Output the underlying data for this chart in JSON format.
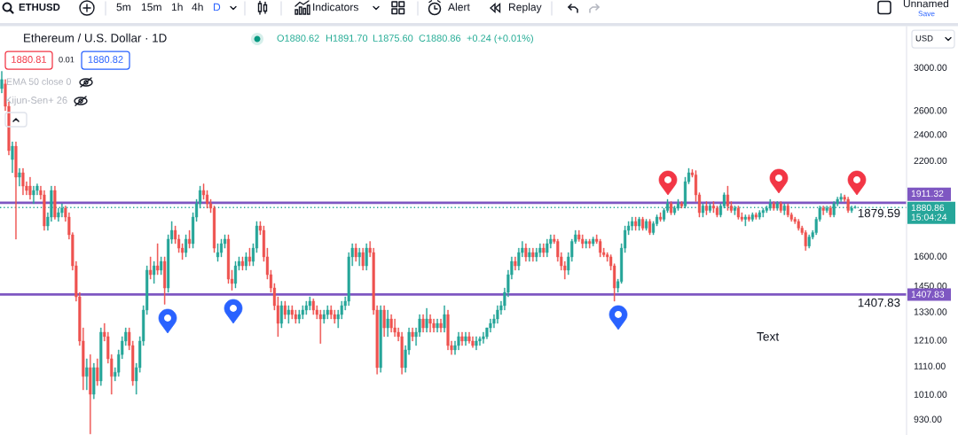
{
  "chart_data": {
    "type": "candlestick",
    "title": "Ethereum / U.S. Dollar · 1D",
    "categories": [
      null,
      null,
      null,
      null,
      null,
      null,
      null,
      null,
      null,
      null,
      null,
      null,
      null,
      null,
      null,
      null,
      null,
      null,
      null,
      null,
      null,
      null,
      null,
      null,
      null,
      null,
      null,
      null,
      null,
      null,
      null,
      null,
      null,
      null,
      null,
      null,
      null,
      null,
      null,
      null,
      null,
      null,
      null,
      null,
      null,
      null,
      null,
      null,
      null,
      null,
      null,
      null,
      null,
      null,
      null,
      null,
      null,
      null,
      null,
      null,
      null,
      null,
      null,
      null,
      null,
      null,
      null,
      null,
      null,
      null,
      null,
      null,
      null,
      null,
      null,
      null,
      null,
      null,
      null,
      null,
      null,
      null,
      null,
      null,
      null,
      null,
      null,
      null,
      null,
      null,
      null,
      null,
      null,
      null,
      null,
      null,
      null,
      null,
      null,
      null,
      null,
      null,
      null,
      null,
      null,
      null,
      null,
      null,
      null,
      null,
      null,
      null,
      null,
      null,
      null,
      null,
      null,
      null,
      null,
      null,
      null,
      null,
      null,
      null,
      null,
      null,
      null,
      null,
      null,
      null,
      null,
      null,
      null,
      null,
      null,
      null,
      null,
      null,
      null,
      null,
      null,
      null,
      null,
      null,
      null,
      null,
      null,
      null,
      null,
      null,
      null,
      null,
      null,
      null,
      null,
      null,
      null,
      null,
      null,
      null,
      null,
      null,
      null,
      null,
      null,
      null,
      null,
      null,
      null,
      null,
      null,
      null,
      null,
      null,
      null,
      null,
      null,
      null,
      null,
      null,
      null,
      null,
      null,
      null,
      null,
      null,
      null,
      null,
      null,
      null,
      null,
      null,
      null,
      null,
      null,
      null,
      null,
      null,
      null,
      null,
      null,
      null,
      null,
      null,
      null,
      null,
      null,
      null,
      null,
      null,
      null,
      null,
      null,
      null,
      null,
      null,
      null,
      null,
      null,
      null,
      null,
      null,
      null,
      null,
      null,
      null,
      null,
      null,
      null,
      null,
      null,
      null,
      null,
      null,
      null,
      null,
      null,
      null,
      null,
      null,
      null,
      null,
      null,
      null,
      null,
      null,
      null,
      null,
      null,
      null,
      null,
      null,
      null,
      null,
      null,
      null
    ],
    "ohlc": [
      [
        2795,
        2960,
        2754,
        2880
      ],
      [
        2838,
        2880,
        2597,
        2635
      ],
      [
        2635,
        2674,
        2240,
        2273
      ],
      [
        2207,
        2341,
        2112,
        2307
      ],
      [
        2307,
        2341,
        1693,
        2081
      ],
      [
        2081,
        2143,
        2020,
        2112
      ],
      [
        2112,
        2143,
        1962,
        2020
      ],
      [
        2020,
        2050,
        1962,
        1991
      ],
      [
        2020,
        2081,
        1933,
        1962
      ],
      [
        1962,
        2020,
        1905,
        1991
      ],
      [
        1991,
        2035,
        1962,
        2020
      ],
      [
        1991,
        2020,
        1933,
        1962
      ],
      [
        1962,
        1991,
        1743,
        1769
      ],
      [
        1769,
        1849,
        1743,
        1822
      ],
      [
        1822,
        2020,
        1796,
        1991
      ],
      [
        1991,
        2020,
        1809,
        1822
      ],
      [
        1822,
        1877,
        1796,
        1849
      ],
      [
        1849,
        1905,
        1822,
        1877
      ],
      [
        1877,
        1891,
        1796,
        1822
      ],
      [
        1822,
        1849,
        1693,
        1718
      ],
      [
        1718,
        1730,
        1527,
        1549
      ],
      [
        1549,
        1572,
        1377,
        1397
      ],
      [
        1397,
        1418,
        1188,
        1206
      ],
      [
        1206,
        1260,
        1025,
        1072
      ],
      [
        1072,
        1137,
        1025,
        1104
      ],
      [
        1104,
        1153,
        885,
        1010
      ],
      [
        1010,
        1120,
        995,
        1104
      ],
      [
        1104,
        1137,
        1040,
        1056
      ],
      [
        1056,
        1260,
        1040,
        1242
      ],
      [
        1242,
        1279,
        1206,
        1224
      ],
      [
        1224,
        1242,
        1120,
        1137
      ],
      [
        1137,
        1153,
        1010,
        1072
      ],
      [
        1072,
        1104,
        1056,
        1087
      ],
      [
        1087,
        1171,
        1072,
        1153
      ],
      [
        1153,
        1224,
        1137,
        1206
      ],
      [
        1206,
        1260,
        1188,
        1242
      ],
      [
        1242,
        1260,
        1171,
        1188
      ],
      [
        1188,
        1206,
        1040,
        1056
      ],
      [
        1056,
        1120,
        1010,
        1104
      ],
      [
        1104,
        1224,
        1087,
        1206
      ],
      [
        1206,
        1357,
        1188,
        1337
      ],
      [
        1337,
        1549,
        1317,
        1527
      ],
      [
        1527,
        1596,
        1482,
        1504
      ],
      [
        1504,
        1572,
        1461,
        1549
      ],
      [
        1549,
        1668,
        1504,
        1527
      ],
      [
        1527,
        1596,
        1504,
        1572
      ],
      [
        1572,
        1596,
        1363,
        1439
      ],
      [
        1439,
        1718,
        1418,
        1693
      ],
      [
        1693,
        1796,
        1668,
        1743
      ],
      [
        1743,
        1769,
        1668,
        1693
      ],
      [
        1693,
        1718,
        1619,
        1643
      ],
      [
        1643,
        1668,
        1582,
        1619
      ],
      [
        1619,
        1718,
        1596,
        1693
      ],
      [
        1693,
        1743,
        1643,
        1668
      ],
      [
        1668,
        1849,
        1643,
        1822
      ],
      [
        1822,
        1933,
        1796,
        1905
      ],
      [
        1905,
        2020,
        1877,
        1991
      ],
      [
        1991,
        2035,
        1933,
        1962
      ],
      [
        1962,
        1991,
        1877,
        1905
      ],
      [
        1905,
        1933,
        1849,
        1877
      ],
      [
        1877,
        1891,
        1619,
        1643
      ],
      [
        1596,
        1668,
        1572,
        1619
      ],
      [
        1619,
        1693,
        1596,
        1668
      ],
      [
        1668,
        1718,
        1643,
        1693
      ],
      [
        1693,
        1718,
        1461,
        1482
      ],
      [
        1482,
        1527,
        1428,
        1461
      ],
      [
        1461,
        1572,
        1439,
        1549
      ],
      [
        1549,
        1596,
        1527,
        1572
      ],
      [
        1572,
        1596,
        1527,
        1549
      ],
      [
        1549,
        1619,
        1527,
        1596
      ],
      [
        1596,
        1643,
        1549,
        1572
      ],
      [
        1572,
        1668,
        1549,
        1643
      ],
      [
        1643,
        1796,
        1619,
        1769
      ],
      [
        1769,
        1796,
        1718,
        1743
      ],
      [
        1743,
        1769,
        1572,
        1596
      ],
      [
        1596,
        1643,
        1482,
        1504
      ],
      [
        1504,
        1527,
        1418,
        1439
      ],
      [
        1439,
        1461,
        1337,
        1357
      ],
      [
        1357,
        1397,
        1224,
        1279
      ],
      [
        1279,
        1377,
        1260,
        1357
      ],
      [
        1357,
        1377,
        1298,
        1317
      ],
      [
        1317,
        1357,
        1279,
        1337
      ],
      [
        1337,
        1357,
        1298,
        1317
      ],
      [
        1317,
        1337,
        1279,
        1298
      ],
      [
        1298,
        1337,
        1279,
        1317
      ],
      [
        1317,
        1357,
        1298,
        1337
      ],
      [
        1337,
        1377,
        1317,
        1357
      ],
      [
        1357,
        1397,
        1337,
        1377
      ],
      [
        1377,
        1388,
        1317,
        1337
      ],
      [
        1337,
        1357,
        1298,
        1317
      ],
      [
        1317,
        1337,
        1196,
        1298
      ],
      [
        1298,
        1337,
        1279,
        1317
      ],
      [
        1317,
        1357,
        1298,
        1337
      ],
      [
        1337,
        1357,
        1298,
        1317
      ],
      [
        1317,
        1337,
        1279,
        1298
      ],
      [
        1298,
        1337,
        1260,
        1317
      ],
      [
        1317,
        1377,
        1298,
        1357
      ],
      [
        1357,
        1397,
        1337,
        1377
      ],
      [
        1377,
        1619,
        1357,
        1596
      ],
      [
        1596,
        1668,
        1549,
        1643
      ],
      [
        1643,
        1668,
        1572,
        1596
      ],
      [
        1596,
        1643,
        1549,
        1619
      ],
      [
        1619,
        1643,
        1527,
        1549
      ],
      [
        1549,
        1668,
        1527,
        1643
      ],
      [
        1643,
        1680,
        1596,
        1619
      ],
      [
        1619,
        1643,
        1317,
        1337
      ],
      [
        1337,
        1357,
        1080,
        1104
      ],
      [
        1104,
        1357,
        1087,
        1337
      ],
      [
        1337,
        1357,
        1224,
        1260
      ],
      [
        1260,
        1337,
        1224,
        1298
      ],
      [
        1298,
        1317,
        1242,
        1260
      ],
      [
        1260,
        1298,
        1224,
        1242
      ],
      [
        1242,
        1260,
        1206,
        1224
      ],
      [
        1224,
        1242,
        1080,
        1104
      ],
      [
        1104,
        1188,
        1087,
        1171
      ],
      [
        1171,
        1260,
        1153,
        1242
      ],
      [
        1242,
        1260,
        1206,
        1224
      ],
      [
        1224,
        1260,
        1188,
        1242
      ],
      [
        1242,
        1317,
        1224,
        1298
      ],
      [
        1298,
        1317,
        1242,
        1260
      ],
      [
        1260,
        1345,
        1242,
        1298
      ],
      [
        1298,
        1317,
        1242,
        1279
      ],
      [
        1279,
        1298,
        1242,
        1260
      ],
      [
        1260,
        1298,
        1242,
        1279
      ],
      [
        1279,
        1298,
        1242,
        1260
      ],
      [
        1260,
        1357,
        1242,
        1317
      ],
      [
        1317,
        1337,
        1171,
        1188
      ],
      [
        1188,
        1206,
        1153,
        1171
      ],
      [
        1171,
        1206,
        1153,
        1188
      ],
      [
        1188,
        1242,
        1171,
        1224
      ],
      [
        1224,
        1242,
        1188,
        1206
      ],
      [
        1206,
        1242,
        1188,
        1224
      ],
      [
        1224,
        1242,
        1197,
        1206
      ],
      [
        1206,
        1224,
        1180,
        1188
      ],
      [
        1188,
        1224,
        1171,
        1206
      ],
      [
        1206,
        1224,
        1188,
        1215
      ],
      [
        1215,
        1242,
        1197,
        1224
      ],
      [
        1224,
        1260,
        1215,
        1260
      ],
      [
        1260,
        1298,
        1242,
        1279
      ],
      [
        1279,
        1317,
        1260,
        1298
      ],
      [
        1298,
        1357,
        1279,
        1337
      ],
      [
        1337,
        1377,
        1317,
        1357
      ],
      [
        1357,
        1439,
        1337,
        1418
      ],
      [
        1418,
        1527,
        1397,
        1504
      ],
      [
        1504,
        1596,
        1482,
        1572
      ],
      [
        1572,
        1596,
        1527,
        1549
      ],
      [
        1549,
        1643,
        1527,
        1619
      ],
      [
        1619,
        1680,
        1596,
        1643
      ],
      [
        1643,
        1668,
        1572,
        1596
      ],
      [
        1596,
        1643,
        1572,
        1619
      ],
      [
        1619,
        1643,
        1572,
        1596
      ],
      [
        1596,
        1643,
        1572,
        1619
      ],
      [
        1619,
        1668,
        1596,
        1643
      ],
      [
        1643,
        1668,
        1596,
        1619
      ],
      [
        1619,
        1693,
        1596,
        1668
      ],
      [
        1668,
        1718,
        1643,
        1693
      ],
      [
        1693,
        1718,
        1668,
        1680
      ],
      [
        1680,
        1693,
        1572,
        1596
      ],
      [
        1596,
        1619,
        1527,
        1549
      ],
      [
        1549,
        1572,
        1482,
        1527
      ],
      [
        1527,
        1619,
        1504,
        1596
      ],
      [
        1596,
        1693,
        1572,
        1680
      ],
      [
        1680,
        1743,
        1668,
        1718
      ],
      [
        1718,
        1743,
        1680,
        1693
      ],
      [
        1693,
        1718,
        1643,
        1668
      ],
      [
        1668,
        1693,
        1643,
        1680
      ],
      [
        1680,
        1693,
        1643,
        1668
      ],
      [
        1668,
        1705,
        1655,
        1693
      ],
      [
        1693,
        1718,
        1668,
        1680
      ],
      [
        1680,
        1693,
        1596,
        1619
      ],
      [
        1619,
        1643,
        1596,
        1607
      ],
      [
        1607,
        1619,
        1572,
        1596
      ],
      [
        1596,
        1607,
        1527,
        1549
      ],
      [
        1549,
        1560,
        1377,
        1439
      ],
      [
        1439,
        1482,
        1418,
        1470
      ],
      [
        1470,
        1668,
        1461,
        1643
      ],
      [
        1643,
        1769,
        1619,
        1743
      ],
      [
        1743,
        1796,
        1718,
        1769
      ],
      [
        1769,
        1822,
        1743,
        1796
      ],
      [
        1796,
        1822,
        1743,
        1769
      ],
      [
        1769,
        1822,
        1743,
        1809
      ],
      [
        1809,
        1822,
        1743,
        1756
      ],
      [
        1756,
        1809,
        1743,
        1796
      ],
      [
        1796,
        1809,
        1718,
        1730
      ],
      [
        1730,
        1796,
        1718,
        1782
      ],
      [
        1782,
        1836,
        1769,
        1822
      ],
      [
        1822,
        1849,
        1796,
        1809
      ],
      [
        1809,
        1877,
        1796,
        1863
      ],
      [
        1863,
        1933,
        1849,
        1905
      ],
      [
        1905,
        1919,
        1836,
        1849
      ],
      [
        1849,
        1891,
        1836,
        1877
      ],
      [
        1877,
        1933,
        1863,
        1905
      ],
      [
        1905,
        1919,
        1877,
        1891
      ],
      [
        1891,
        2081,
        1877,
        2050
      ],
      [
        2050,
        2143,
        2035,
        2112
      ],
      [
        2112,
        2135,
        2081,
        2097
      ],
      [
        2097,
        2127,
        1919,
        1962
      ],
      [
        1962,
        1976,
        1822,
        1849
      ],
      [
        1849,
        1905,
        1822,
        1891
      ],
      [
        1891,
        1919,
        1836,
        1863
      ],
      [
        1863,
        1905,
        1849,
        1891
      ],
      [
        1891,
        1919,
        1849,
        1877
      ],
      [
        1877,
        1891,
        1822,
        1836
      ],
      [
        1836,
        1905,
        1822,
        1891
      ],
      [
        1891,
        1976,
        1877,
        1962
      ],
      [
        1962,
        2020,
        1863,
        1891
      ],
      [
        1891,
        1919,
        1849,
        1863
      ],
      [
        1863,
        1891,
        1836,
        1877
      ],
      [
        1877,
        1891,
        1809,
        1822
      ],
      [
        1822,
        1849,
        1796,
        1809
      ],
      [
        1809,
        1836,
        1769,
        1822
      ],
      [
        1822,
        1836,
        1796,
        1809
      ],
      [
        1809,
        1849,
        1796,
        1836
      ],
      [
        1836,
        1849,
        1809,
        1822
      ],
      [
        1822,
        1863,
        1809,
        1849
      ],
      [
        1849,
        1877,
        1822,
        1863
      ],
      [
        1863,
        1891,
        1849,
        1877
      ],
      [
        1877,
        1933,
        1863,
        1905
      ],
      [
        1905,
        1919,
        1863,
        1877
      ],
      [
        1877,
        1919,
        1863,
        1905
      ],
      [
        1905,
        1919,
        1849,
        1863
      ],
      [
        1863,
        1905,
        1836,
        1891
      ],
      [
        1891,
        1905,
        1822,
        1836
      ],
      [
        1836,
        1849,
        1796,
        1809
      ],
      [
        1809,
        1822,
        1782,
        1796
      ],
      [
        1796,
        1809,
        1743,
        1756
      ],
      [
        1756,
        1769,
        1718,
        1730
      ],
      [
        1730,
        1743,
        1630,
        1655
      ],
      [
        1655,
        1718,
        1643,
        1705
      ],
      [
        1705,
        1743,
        1693,
        1730
      ],
      [
        1730,
        1822,
        1718,
        1809
      ],
      [
        1809,
        1891,
        1796,
        1877
      ],
      [
        1877,
        1891,
        1836,
        1863
      ],
      [
        1863,
        1891,
        1849,
        1877
      ],
      [
        1877,
        1891,
        1822,
        1836
      ],
      [
        1836,
        1919,
        1822,
        1905
      ],
      [
        1905,
        1948,
        1891,
        1933
      ],
      [
        1933,
        1970,
        1919,
        1948
      ],
      [
        1948,
        1962,
        1919,
        1933
      ],
      [
        1933,
        1948,
        1849,
        1863
      ],
      [
        1863,
        1891,
        1849,
        1877
      ],
      [
        1880.62,
        1891.7,
        1875.6,
        1880.86
      ],
      null,
      null,
      null,
      null,
      null,
      null,
      null,
      null,
      null,
      null,
      null,
      null,
      null,
      null
    ],
    "colors": [
      "#26a69a",
      "#ef5350",
      "#ef5350",
      "#26a69a",
      "#ef5350",
      "#26a69a",
      "#ef5350",
      "#ef5350",
      "#ef5350",
      "#26a69a",
      "#26a69a",
      "#ef5350",
      "#ef5350",
      "#26a69a",
      "#26a69a",
      "#ef5350",
      "#26a69a",
      "#26a69a",
      "#ef5350",
      "#ef5350",
      "#ef5350",
      "#ef5350",
      "#ef5350",
      "#ef5350",
      "#26a69a",
      "#ef5350",
      "#26a69a",
      "#ef5350",
      "#26a69a",
      "#ef5350",
      "#ef5350",
      "#ef5350",
      "#26a69a",
      "#26a69a",
      "#26a69a",
      "#26a69a",
      "#ef5350",
      "#ef5350",
      "#26a69a",
      "#26a69a",
      "#26a69a",
      "#26a69a",
      "#ef5350",
      "#26a69a",
      "#ef5350",
      "#26a69a",
      "#ef5350",
      "#26a69a",
      "#26a69a",
      "#ef5350",
      "#ef5350",
      "#ef5350",
      "#26a69a",
      "#ef5350",
      "#26a69a",
      "#26a69a",
      "#26a69a",
      "#ef5350",
      "#ef5350",
      "#ef5350",
      "#ef5350",
      "#26a69a",
      "#26a69a",
      "#26a69a",
      "#ef5350",
      "#ef5350",
      "#26a69a",
      "#26a69a",
      "#ef5350",
      "#26a69a",
      "#ef5350",
      "#26a69a",
      "#26a69a",
      "#ef5350",
      "#ef5350",
      "#ef5350",
      "#ef5350",
      "#ef5350",
      "#ef5350",
      "#26a69a",
      "#ef5350",
      "#26a69a",
      "#ef5350",
      "#ef5350",
      "#26a69a",
      "#26a69a",
      "#26a69a",
      "#26a69a",
      "#ef5350",
      "#ef5350",
      "#ef5350",
      "#26a69a",
      "#26a69a",
      "#ef5350",
      "#ef5350",
      "#26a69a",
      "#26a69a",
      "#26a69a",
      "#26a69a",
      "#26a69a",
      "#ef5350",
      "#26a69a",
      "#ef5350",
      "#26a69a",
      "#ef5350",
      "#ef5350",
      "#ef5350",
      "#26a69a",
      "#ef5350",
      "#26a69a",
      "#ef5350",
      "#ef5350",
      "#ef5350",
      "#ef5350",
      "#26a69a",
      "#26a69a",
      "#ef5350",
      "#26a69a",
      "#26a69a",
      "#ef5350",
      "#26a69a",
      "#ef5350",
      "#ef5350",
      "#26a69a",
      "#ef5350",
      "#26a69a",
      "#ef5350",
      "#ef5350",
      "#26a69a",
      "#26a69a",
      "#ef5350",
      "#26a69a",
      "#ef5350",
      "#ef5350",
      "#26a69a",
      "#26a69a",
      "#26a69a",
      "#26a69a",
      "#26a69a",
      "#26a69a",
      "#26a69a",
      "#26a69a",
      "#26a69a",
      "#26a69a",
      "#26a69a",
      "#ef5350",
      "#26a69a",
      "#26a69a",
      "#ef5350",
      "#26a69a",
      "#ef5350",
      "#26a69a",
      "#26a69a",
      "#ef5350",
      "#26a69a",
      "#26a69a",
      "#ef5350",
      "#ef5350",
      "#ef5350",
      "#ef5350",
      "#26a69a",
      "#26a69a",
      "#26a69a",
      "#ef5350",
      "#ef5350",
      "#26a69a",
      "#ef5350",
      "#26a69a",
      "#ef5350",
      "#ef5350",
      "#ef5350",
      "#ef5350",
      "#ef5350",
      "#ef5350",
      "#26a69a",
      "#26a69a",
      "#26a69a",
      "#26a69a",
      "#26a69a",
      "#ef5350",
      "#26a69a",
      "#ef5350",
      "#26a69a",
      "#ef5350",
      "#26a69a",
      "#26a69a",
      "#ef5350",
      "#26a69a",
      "#26a69a",
      "#ef5350",
      "#26a69a",
      "#26a69a",
      "#ef5350",
      "#26a69a",
      "#26a69a",
      "#ef5350",
      "#ef5350",
      "#ef5350",
      "#26a69a",
      "#ef5350",
      "#26a69a",
      "#ef5350",
      "#ef5350",
      "#26a69a",
      "#26a69a",
      "#ef5350",
      "#ef5350",
      "#26a69a",
      "#ef5350",
      "#ef5350",
      "#26a69a",
      "#ef5350",
      "#26a69a",
      "#ef5350",
      "#26a69a",
      "#26a69a",
      "#26a69a",
      "#26a69a",
      "#ef5350",
      "#26a69a",
      "#ef5350",
      "#26a69a",
      "#ef5350",
      "#ef5350",
      "#ef5350",
      "#ef5350",
      "#ef5350",
      "#ef5350",
      "#26a69a",
      "#26a69a",
      "#26a69a",
      "#26a69a",
      "#ef5350",
      "#26a69a",
      "#ef5350",
      "#26a69a",
      "#26a69a",
      "#26a69a",
      "#ef5350",
      "#ef5350",
      "#26a69a",
      "#26a69a",
      null,
      null,
      null,
      null,
      null,
      null,
      null,
      null,
      null,
      null,
      null,
      null,
      null,
      null
    ],
    "log": true,
    "ylim": [
      882,
      3436
    ],
    "yticks": [
      {
        "value": 3000,
        "label": "3000.00"
      },
      {
        "value": 2600,
        "label": "2600.00"
      },
      {
        "value": 2400,
        "label": "2400.00"
      },
      {
        "value": 2200,
        "label": "2200.00"
      },
      {
        "value": 1600,
        "label": "1600.00"
      },
      {
        "value": 1450,
        "label": "1450.00"
      },
      {
        "value": 1330,
        "label": "1330.00"
      },
      {
        "value": 1210,
        "label": "1210.00"
      },
      {
        "value": 1110,
        "label": "1110.00"
      },
      {
        "value": 1010,
        "label": "1010.00"
      },
      {
        "value": 930,
        "label": "930.00"
      }
    ],
    "tick_labels": "y",
    "ref_lines": [
      {
        "axis": "y",
        "value": 1911.32,
        "label": "1911.32",
        "color": "#7e57c2"
      },
      {
        "axis": "y",
        "value": 1407.83,
        "label": "1407.83",
        "color": "#7e57c2"
      },
      {
        "axis": "y",
        "value": 1880.86,
        "label": "1880.86",
        "color": "#26a69a",
        "line_style": "dotted"
      }
    ],
    "annotations": [
      "ETHUSD",
      "5m",
      "15m",
      "1h",
      "4h",
      "D",
      "Indicators",
      "Alert",
      "Replay",
      "Unnamed",
      "Save",
      "O1880.62",
      "H1891.70",
      "L1875.60",
      "C1880.86",
      "+0.24 (+0.01%)",
      "1880.81",
      "0.01",
      "1880.82",
      "EMA 50 close 0",
      "Kijun-Sen+ 26",
      "USD",
      "15:04:24",
      {
        "text": "1879.59",
        "y": 1879.59
      },
      {
        "text": "1407.83",
        "y": 1407.83
      },
      "Text"
    ]
  }
}
